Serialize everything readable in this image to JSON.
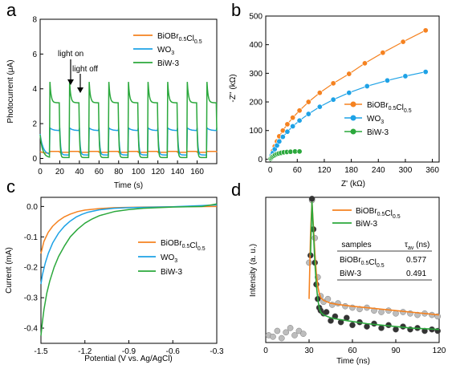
{
  "colors": {
    "orange": "#F58220",
    "blue": "#1EA2E6",
    "green": "#2BA83C",
    "darkgreen": "#1F8F2C",
    "black": "#000000",
    "grey_dot": "#bdbdbd",
    "dark_dot": "#333333"
  },
  "chart_data": [
    {
      "panel": "a",
      "type": "line",
      "xlabel": "Time (s)",
      "ylabel": "Photocurrent (μA)",
      "xlim": [
        0,
        180
      ],
      "ylim": [
        -0.3,
        8
      ],
      "xticks": [
        "0",
        "20",
        "40",
        "60",
        "80",
        "100",
        "120",
        "140",
        "160"
      ],
      "yticks": [
        "0",
        "2",
        "4",
        "6",
        "8"
      ],
      "annotations": [
        "light on",
        "light off"
      ],
      "cycle_period_s": 20,
      "series": [
        {
          "name": "BiOBr0.5Cl0.5",
          "color_key": "orange",
          "light_on_value": 0.4,
          "dark_value": 0.3
        },
        {
          "name": "WO3",
          "color_key": "blue",
          "light_on_value": 1.75,
          "dark_value": 0.2
        },
        {
          "name": "BiW-3",
          "color_key": "green",
          "light_on_value": 4.4,
          "steady_value": 3.2,
          "dark_value": 0.05
        }
      ],
      "legend": {
        "items": [
          {
            "base": "BiOBr",
            "sub1": "0.5",
            "mid": "Cl",
            "sub2": "0.5"
          },
          {
            "base": "WO",
            "sub1": "3",
            "mid": "",
            "sub2": ""
          },
          {
            "base": "BiW-3",
            "sub1": "",
            "mid": "",
            "sub2": ""
          }
        ]
      }
    },
    {
      "panel": "b",
      "type": "scatter",
      "xlabel": "Z' (kΩ)",
      "ylabel": "-Z'' (kΩ)",
      "xlim": [
        -10,
        375
      ],
      "ylim": [
        -10,
        500
      ],
      "xticks": [
        "0",
        "60",
        "120",
        "180",
        "240",
        "300",
        "360"
      ],
      "yticks": [
        "0",
        "100",
        "200",
        "300",
        "400",
        "500"
      ],
      "series": [
        {
          "name": "BiOBr0.5Cl0.5",
          "color_key": "orange",
          "x": [
            1,
            3,
            6,
            10,
            15,
            20,
            28,
            38,
            50,
            65,
            85,
            110,
            140,
            175,
            210,
            250,
            295,
            345
          ],
          "y": [
            5,
            15,
            28,
            45,
            62,
            80,
            100,
            122,
            145,
            170,
            200,
            232,
            265,
            298,
            335,
            372,
            410,
            450
          ]
        },
        {
          "name": "WO3",
          "color_key": "blue",
          "x": [
            1,
            3,
            6,
            10,
            15,
            20,
            28,
            38,
            50,
            65,
            85,
            110,
            140,
            175,
            215,
            260,
            300,
            345
          ],
          "y": [
            4,
            12,
            22,
            35,
            48,
            62,
            78,
            96,
            115,
            135,
            158,
            183,
            208,
            232,
            255,
            275,
            290,
            305
          ]
        },
        {
          "name": "BiW-3",
          "color_key": "green",
          "x": [
            1,
            3,
            5,
            8,
            11,
            15,
            19,
            24,
            30,
            37,
            45,
            55,
            65
          ],
          "y": [
            2,
            5,
            9,
            12,
            15,
            18,
            20,
            22,
            24,
            25,
            26,
            27,
            27
          ]
        }
      ],
      "legend": {
        "items": [
          {
            "base": "BiOBr",
            "sub1": "0.5",
            "mid": "Cl",
            "sub2": "0.5"
          },
          {
            "base": "WO",
            "sub1": "3",
            "mid": "",
            "sub2": ""
          },
          {
            "base": "BiW-3",
            "sub1": "",
            "mid": "",
            "sub2": ""
          }
        ]
      }
    },
    {
      "panel": "c",
      "type": "line",
      "xlabel": "Potential (V vs. Ag/AgCl)",
      "ylabel": "Current (mA)",
      "xlim": [
        -1.5,
        -0.3
      ],
      "ylim": [
        -0.45,
        0.03
      ],
      "xticks": [
        "-1.5",
        "-1.2",
        "-0.9",
        "-0.6",
        "-0.3"
      ],
      "yticks": [
        "0.0",
        "-0.1",
        "-0.2",
        "-0.3",
        "-0.4"
      ],
      "series": [
        {
          "name": "BiOBr0.5Cl0.5",
          "color_key": "orange",
          "x": [
            -1.5,
            -1.48,
            -1.45,
            -1.42,
            -1.38,
            -1.34,
            -1.3,
            -1.25,
            -1.2,
            -1.1,
            -1.0,
            -0.9,
            -0.8,
            -0.6,
            -0.3
          ],
          "y": [
            -0.155,
            -0.115,
            -0.085,
            -0.065,
            -0.047,
            -0.034,
            -0.025,
            -0.017,
            -0.012,
            -0.007,
            -0.004,
            -0.003,
            -0.002,
            -0.001,
            0.0
          ]
        },
        {
          "name": "WO3",
          "color_key": "blue",
          "x": [
            -1.5,
            -1.49,
            -1.47,
            -1.45,
            -1.42,
            -1.38,
            -1.34,
            -1.3,
            -1.26,
            -1.22,
            -1.18,
            -1.1,
            -1.0,
            -0.9,
            -0.8,
            -0.6,
            -0.3
          ],
          "y": [
            -0.255,
            -0.225,
            -0.185,
            -0.155,
            -0.12,
            -0.088,
            -0.065,
            -0.048,
            -0.035,
            -0.026,
            -0.019,
            -0.011,
            -0.006,
            -0.004,
            -0.003,
            -0.001,
            0.005
          ]
        },
        {
          "name": "BiW-3",
          "color_key": "green",
          "x": [
            -1.5,
            -1.49,
            -1.48,
            -1.46,
            -1.44,
            -1.41,
            -1.38,
            -1.34,
            -1.3,
            -1.25,
            -1.2,
            -1.15,
            -1.1,
            -1.0,
            -0.9,
            -0.8,
            -0.6,
            -0.4,
            -0.3
          ],
          "y": [
            -0.425,
            -0.38,
            -0.34,
            -0.285,
            -0.245,
            -0.2,
            -0.165,
            -0.13,
            -0.1,
            -0.075,
            -0.055,
            -0.041,
            -0.03,
            -0.017,
            -0.01,
            -0.006,
            -0.002,
            0.0,
            0.008
          ]
        }
      ],
      "legend": {
        "items": [
          {
            "base": "BiOBr",
            "sub1": "0.5",
            "mid": "Cl",
            "sub2": "0.5"
          },
          {
            "base": "WO",
            "sub1": "3",
            "mid": "",
            "sub2": ""
          },
          {
            "base": "BiW-3",
            "sub1": "",
            "mid": "",
            "sub2": ""
          }
        ]
      }
    },
    {
      "panel": "d",
      "type": "scatter",
      "xlabel": "Time (ns)",
      "ylabel": "Intensity (a. u.)",
      "xlim": [
        0,
        120
      ],
      "ylim": [
        0,
        1
      ],
      "xticks": [
        "0",
        "30",
        "60",
        "90",
        "120"
      ],
      "series": [
        {
          "name": "BiOBr0.5Cl0.5",
          "color_key": "orange",
          "marker_color_key": "grey_dot",
          "x": [
            2,
            5,
            8,
            11,
            14,
            17,
            20,
            23,
            26,
            30,
            32,
            34,
            36,
            38,
            40,
            43,
            46,
            50,
            55,
            60,
            65,
            70,
            75,
            80,
            85,
            90,
            95,
            100,
            105,
            110,
            115,
            119
          ],
          "y": [
            0.05,
            0.04,
            0.08,
            0.03,
            0.07,
            0.1,
            0.05,
            0.08,
            0.06,
            0.55,
            0.98,
            0.72,
            0.45,
            0.32,
            0.28,
            0.3,
            0.26,
            0.27,
            0.25,
            0.24,
            0.23,
            0.24,
            0.22,
            0.21,
            0.22,
            0.2,
            0.21,
            0.2,
            0.19,
            0.2,
            0.19,
            0.18
          ],
          "fit_x": [
            30,
            31,
            32,
            33,
            34,
            35,
            36,
            37,
            38,
            40,
            45,
            50,
            60,
            70,
            80,
            90,
            100,
            110,
            120
          ],
          "fit_y": [
            0.3,
            0.75,
            0.97,
            0.8,
            0.62,
            0.48,
            0.39,
            0.34,
            0.31,
            0.29,
            0.27,
            0.262,
            0.25,
            0.24,
            0.23,
            0.22,
            0.21,
            0.2,
            0.19
          ]
        },
        {
          "name": "BiW-3",
          "color_key": "green",
          "marker_color_key": "dark_dot",
          "x": [
            31,
            32,
            33,
            34,
            35,
            36,
            37,
            38,
            40,
            42,
            45,
            48,
            52,
            56,
            60,
            65,
            70,
            75,
            80,
            85,
            90,
            95,
            100,
            105,
            110,
            115,
            119
          ],
          "y": [
            0.6,
            0.99,
            0.78,
            0.55,
            0.4,
            0.3,
            0.24,
            0.22,
            0.2,
            0.21,
            0.15,
            0.18,
            0.14,
            0.17,
            0.12,
            0.14,
            0.11,
            0.13,
            0.1,
            0.12,
            0.09,
            0.11,
            0.09,
            0.1,
            0.08,
            0.09,
            0.08
          ],
          "fit_x": [
            31,
            32,
            33,
            34,
            35,
            36,
            37,
            38,
            40,
            45,
            50,
            60,
            70,
            80,
            90,
            100,
            110,
            120
          ],
          "fit_y": [
            0.6,
            0.97,
            0.76,
            0.55,
            0.4,
            0.3,
            0.24,
            0.21,
            0.19,
            0.17,
            0.16,
            0.145,
            0.13,
            0.12,
            0.11,
            0.1,
            0.095,
            0.09
          ]
        }
      ],
      "legend": {
        "items": [
          {
            "base": "BiOBr",
            "sub1": "0.5",
            "mid": "Cl",
            "sub2": "0.5"
          },
          {
            "base": "BiW-3",
            "sub1": "",
            "mid": "",
            "sub2": ""
          }
        ]
      },
      "table": {
        "header": [
          "samples",
          "τav (ns)"
        ],
        "rows": [
          {
            "sample_base": "BiOBr",
            "sample_sub1": "0.5",
            "sample_mid": "Cl",
            "sample_sub2": "0.5",
            "tau": "0.577"
          },
          {
            "sample_base": "BiW-3",
            "sample_sub1": "",
            "sample_mid": "",
            "sample_sub2": "",
            "tau": "0.491"
          }
        ]
      }
    }
  ],
  "panel_labels": [
    "a",
    "b",
    "c",
    "d"
  ]
}
